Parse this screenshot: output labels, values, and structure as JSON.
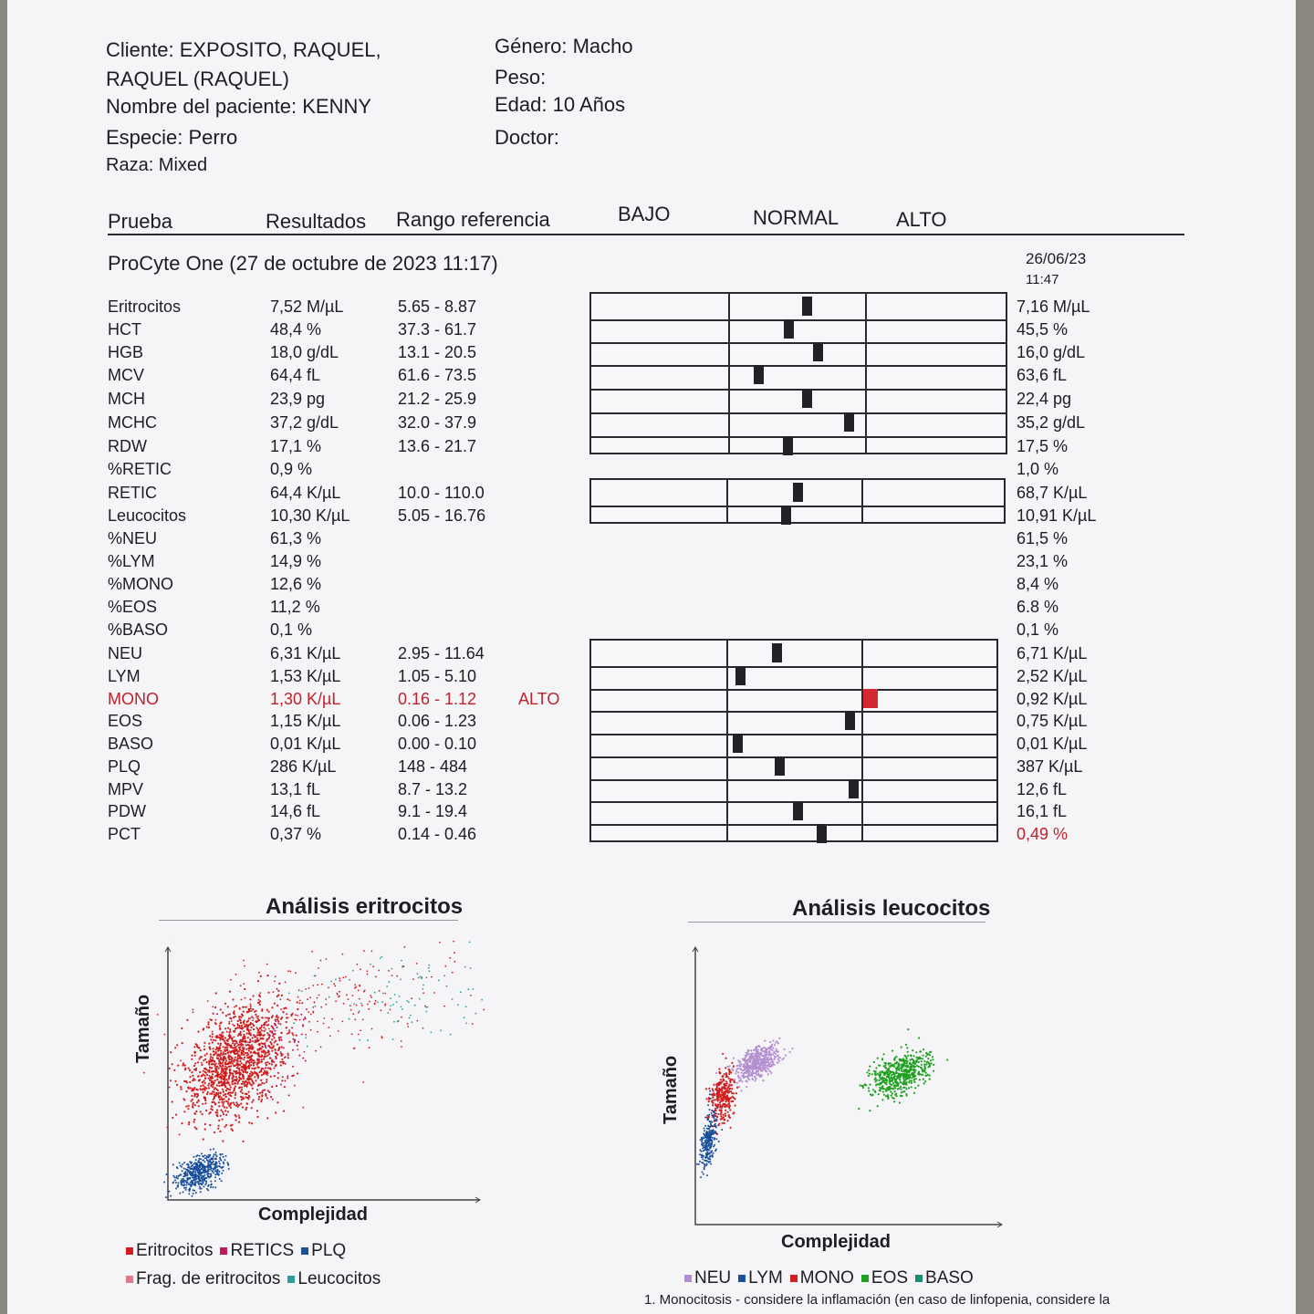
{
  "header": {
    "cliente": "Cliente: EXPOSITO, RAQUEL,",
    "cliente2": "RAQUEL (RAQUEL)",
    "paciente": "Nombre del paciente: KENNY",
    "especie": "Especie: Perro",
    "raza": "Raza: Mixed",
    "genero": "Género: Macho",
    "peso": "Peso:",
    "edad": "Edad: 10 Años",
    "doctor": "Doctor:"
  },
  "columns": {
    "prueba": "Prueba",
    "resultados": "Resultados",
    "rango": "Rango referencia",
    "bajo": "BAJO",
    "normal": "NORMAL",
    "alto": "ALTO"
  },
  "session": {
    "title": "ProCyte One (27 de octubre de 2023 11:17)",
    "prev_date": "26/06/23",
    "prev_time": "11:47"
  },
  "status_colors": {
    "normal": "#222226",
    "high": "#d22a30"
  },
  "rows": [
    {
      "test": "Eritrocitos",
      "result": "7,52 M/µL",
      "range": "5.65 - 8.87",
      "flag": "",
      "prev": "7,16 M/µL",
      "level": 0.57
    },
    {
      "test": "HCT",
      "result": "48,4 %",
      "range": "37.3 - 61.7",
      "flag": "",
      "prev": "45,5 %",
      "level": 0.44
    },
    {
      "test": "HGB",
      "result": "18,0 g/dL",
      "range": "13.1 - 20.5",
      "flag": "",
      "prev": "16,0 g/dL",
      "level": 0.65
    },
    {
      "test": "MCV",
      "result": "64,4 fL",
      "range": "61.6 - 73.5",
      "flag": "",
      "prev": "63,6 fL",
      "level": 0.22
    },
    {
      "test": "MCH",
      "result": "23,9 pg",
      "range": "21.2 - 25.9",
      "flag": "",
      "prev": "22,4 pg",
      "level": 0.57
    },
    {
      "test": "MCHC",
      "result": "37,2 g/dL",
      "range": "32.0 - 37.9",
      "flag": "",
      "prev": "35,2 g/dL",
      "level": 0.88
    },
    {
      "test": "RDW",
      "result": "17,1 %",
      "range": "13.6 - 21.7",
      "flag": "",
      "prev": "17,5 %",
      "level": 0.43
    },
    {
      "test": "%RETIC",
      "result": "0,9 %",
      "range": "",
      "flag": "",
      "prev": "1,0 %"
    },
    {
      "test": "RETIC",
      "result": "64,4 K/µL",
      "range": "10.0 - 110.0",
      "flag": "",
      "prev": "68,7 K/µL",
      "level": 0.53
    },
    {
      "test": "Leucocitos",
      "result": "10,30 K/µL",
      "range": "5.05 - 16.76",
      "flag": "",
      "prev": "10,91 K/µL",
      "level": 0.44
    },
    {
      "test": "%NEU",
      "result": "61,3 %",
      "range": "",
      "flag": "",
      "prev": "61,5 %"
    },
    {
      "test": "%LYM",
      "result": "14,9 %",
      "range": "",
      "flag": "",
      "prev": "23,1 %"
    },
    {
      "test": "%MONO",
      "result": "12,6 %",
      "range": "",
      "flag": "",
      "prev": "8,4 %"
    },
    {
      "test": "%EOS",
      "result": "11,2 %",
      "range": "",
      "flag": "",
      "prev": "6.8 %"
    },
    {
      "test": "%BASO",
      "result": "0,1 %",
      "range": "",
      "flag": "",
      "prev": "0,1 %"
    },
    {
      "test": "NEU",
      "result": "6,31 K/µL",
      "range": "2.95 - 11.64",
      "flag": "",
      "prev": "6,71 K/µL",
      "level": 0.37
    },
    {
      "test": "LYM",
      "result": "1,53 K/µL",
      "range": "1.05 - 5.10",
      "flag": "",
      "prev": "2,52 K/µL",
      "level": 0.1
    },
    {
      "test": "MONO",
      "result": "1,30 K/µL",
      "range": "0.16 - 1.12",
      "flag": "ALTO",
      "prev": "0,92 K/µL",
      "level": 1.05,
      "high": true
    },
    {
      "test": "EOS",
      "result": "1,15 K/µL",
      "range": "0.06 - 1.23",
      "flag": "",
      "prev": "0,75 K/µL",
      "level": 0.91
    },
    {
      "test": "BASO",
      "result": "0,01 K/µL",
      "range": "0.00 - 0.10",
      "flag": "",
      "prev": "0,01 K/µL",
      "level": 0.08
    },
    {
      "test": "PLQ",
      "result": "286 K/µL",
      "range": "148 - 484",
      "flag": "",
      "prev": "387 K/µL",
      "level": 0.39
    },
    {
      "test": "MPV",
      "result": "13,1 fL",
      "range": "8.7 - 13.2",
      "flag": "",
      "prev": "12,6 fL",
      "level": 0.94
    },
    {
      "test": "PDW",
      "result": "14,6 fL",
      "range": "9.1 - 19.4",
      "flag": "",
      "prev": "16,1 fL",
      "level": 0.53
    },
    {
      "test": "PCT",
      "result": "0,37 %",
      "range": "0.14 - 0.46",
      "flag": "",
      "prev": "0,49 %",
      "level": 0.7,
      "prev_high": true
    }
  ],
  "rbc_plot": {
    "title": "Análisis eritrocitos",
    "ylabel": "Tamaño",
    "xlabel": "Complejidad",
    "legend": [
      {
        "label": "Eritrocitos",
        "color": "#d01e1e"
      },
      {
        "label": "RETICS",
        "color": "#c2185b"
      },
      {
        "label": "PLQ",
        "color": "#1a4f9c"
      },
      {
        "label": "Frag. de eritrocitos",
        "color": "#e07a8a"
      },
      {
        "label": "Leucocitos",
        "color": "#2aa198"
      }
    ]
  },
  "wbc_plot": {
    "title": "Análisis leucocitos",
    "ylabel": "Tamaño",
    "xlabel": "Complejidad",
    "legend": [
      {
        "label": "NEU",
        "color": "#b48fd0"
      },
      {
        "label": "LYM",
        "color": "#1a4f9c"
      },
      {
        "label": "MONO",
        "color": "#d01e1e"
      },
      {
        "label": "EOS",
        "color": "#1fa11f"
      },
      {
        "label": "BASO",
        "color": "#1e8a7a"
      }
    ]
  },
  "footnote": "1. Monocitosis - considere la inflamación (en caso de linfopenia, considere la"
}
